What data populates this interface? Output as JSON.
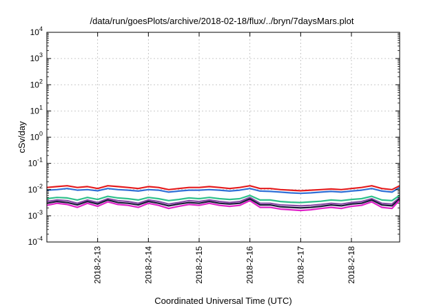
{
  "chart_data": {
    "type": "line",
    "title": "/data/run/goesPlots/archive/2018-02-18/flux/../bryn/7daysMars.plot",
    "xlabel": "Coordinated Universal Time (UTC)",
    "ylabel": "cSv/day",
    "y_scale": "log",
    "ylim": [
      0.0001,
      10000
    ],
    "xlim": [
      0.0,
      6.95
    ],
    "grid": true,
    "legend": "none",
    "x_ticks": [
      {
        "label": "2018-2-13",
        "value": 1
      },
      {
        "label": "2018-2-14",
        "value": 2
      },
      {
        "label": "2018-2-15",
        "value": 3
      },
      {
        "label": "2018-2-16",
        "value": 4
      },
      {
        "label": "2018-2-17",
        "value": 5
      },
      {
        "label": "2018-2-18",
        "value": 6
      }
    ],
    "y_ticks": [
      {
        "base": "10",
        "exp": "-4",
        "value": 0.0001
      },
      {
        "base": "10",
        "exp": "-3",
        "value": 0.001
      },
      {
        "base": "10",
        "exp": "-2",
        "value": 0.01
      },
      {
        "base": "10",
        "exp": "-1",
        "value": 0.1
      },
      {
        "base": "10",
        "exp": "0",
        "value": 1
      },
      {
        "base": "10",
        "exp": "1",
        "value": 10
      },
      {
        "base": "10",
        "exp": "2",
        "value": 100
      },
      {
        "base": "10",
        "exp": "3",
        "value": 1000
      },
      {
        "base": "10",
        "exp": "4",
        "value": 10000
      }
    ],
    "x": [
      0.0,
      0.2,
      0.4,
      0.6,
      0.8,
      1.0,
      1.2,
      1.4,
      1.6,
      1.8,
      2.0,
      2.2,
      2.4,
      2.6,
      2.8,
      3.0,
      3.2,
      3.4,
      3.6,
      3.8,
      4.0,
      4.2,
      4.4,
      4.6,
      4.8,
      5.0,
      5.2,
      5.4,
      5.6,
      5.8,
      6.0,
      6.2,
      6.4,
      6.6,
      6.8,
      6.95
    ],
    "series": [
      {
        "color": "#e41a1c",
        "values": [
          0.012,
          0.013,
          0.014,
          0.012,
          0.013,
          0.011,
          0.014,
          0.013,
          0.012,
          0.011,
          0.013,
          0.012,
          0.01,
          0.011,
          0.012,
          0.012,
          0.013,
          0.012,
          0.011,
          0.012,
          0.014,
          0.011,
          0.011,
          0.01,
          0.0095,
          0.009,
          0.0095,
          0.01,
          0.0105,
          0.01,
          0.011,
          0.012,
          0.014,
          0.011,
          0.01,
          0.014
        ]
      },
      {
        "color": "#2f6fd6",
        "values": [
          0.0095,
          0.01,
          0.011,
          0.0095,
          0.01,
          0.009,
          0.011,
          0.01,
          0.0095,
          0.0088,
          0.01,
          0.0095,
          0.008,
          0.0088,
          0.0095,
          0.0095,
          0.01,
          0.0095,
          0.0088,
          0.0095,
          0.011,
          0.0088,
          0.0085,
          0.008,
          0.0075,
          0.0072,
          0.0075,
          0.008,
          0.0085,
          0.008,
          0.0088,
          0.0095,
          0.011,
          0.0088,
          0.008,
          0.012
        ]
      },
      {
        "color": "#2ebf8a",
        "values": [
          0.0045,
          0.005,
          0.0048,
          0.004,
          0.005,
          0.0042,
          0.0055,
          0.0048,
          0.0045,
          0.004,
          0.005,
          0.0045,
          0.0038,
          0.0042,
          0.0048,
          0.0045,
          0.005,
          0.0045,
          0.0042,
          0.0045,
          0.006,
          0.004,
          0.004,
          0.0035,
          0.0033,
          0.0032,
          0.0034,
          0.0036,
          0.004,
          0.0038,
          0.0042,
          0.0045,
          0.0055,
          0.004,
          0.0038,
          0.006
        ]
      },
      {
        "color": "#8a4aa8",
        "values": [
          0.0035,
          0.004,
          0.0038,
          0.003,
          0.004,
          0.0032,
          0.0045,
          0.0038,
          0.0035,
          0.003,
          0.004,
          0.0035,
          0.0028,
          0.0032,
          0.0038,
          0.0035,
          0.004,
          0.0035,
          0.0032,
          0.0035,
          0.005,
          0.003,
          0.003,
          0.0026,
          0.0025,
          0.0024,
          0.0025,
          0.0027,
          0.003,
          0.0028,
          0.0032,
          0.0035,
          0.0045,
          0.003,
          0.0028,
          0.005
        ]
      },
      {
        "color": "#1a1a3a",
        "values": [
          0.003,
          0.0035,
          0.0032,
          0.0026,
          0.0035,
          0.0028,
          0.004,
          0.0032,
          0.003,
          0.0026,
          0.0035,
          0.003,
          0.0024,
          0.0028,
          0.0032,
          0.003,
          0.0035,
          0.003,
          0.0028,
          0.003,
          0.0044,
          0.0026,
          0.0026,
          0.0022,
          0.0021,
          0.002,
          0.0021,
          0.0023,
          0.0026,
          0.0024,
          0.0028,
          0.003,
          0.004,
          0.0026,
          0.0024,
          0.0045
        ]
      },
      {
        "color": "#e020c8",
        "values": [
          0.0025,
          0.003,
          0.0027,
          0.0021,
          0.003,
          0.0023,
          0.0034,
          0.0027,
          0.0025,
          0.0021,
          0.003,
          0.0025,
          0.0019,
          0.0023,
          0.0027,
          0.0025,
          0.003,
          0.0025,
          0.0023,
          0.0025,
          0.0038,
          0.0021,
          0.0021,
          0.0018,
          0.0017,
          0.0016,
          0.0017,
          0.0019,
          0.0021,
          0.0019,
          0.0023,
          0.0025,
          0.0034,
          0.0021,
          0.0019,
          0.004
        ]
      }
    ]
  }
}
